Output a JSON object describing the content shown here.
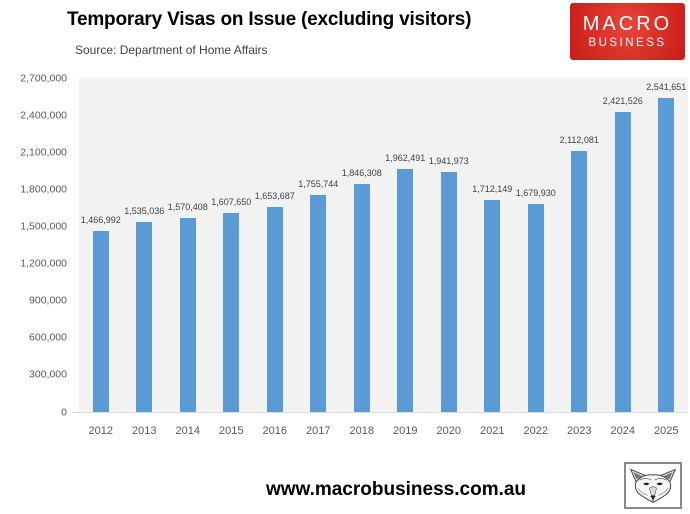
{
  "header": {
    "title": "Temporary Visas on Issue (excluding visitors)",
    "source": "Source: Department of Home Affairs",
    "logo": {
      "line1": "MACRO",
      "line2": "BUSINESS"
    }
  },
  "chart_data": {
    "type": "bar",
    "title": "Temporary Visas on Issue (excluding visitors)",
    "subtitle": "Source: Department of Home Affairs",
    "categories": [
      "2012",
      "2013",
      "2014",
      "2015",
      "2016",
      "2017",
      "2018",
      "2019",
      "2020",
      "2021",
      "2022",
      "2023",
      "2024",
      "2025"
    ],
    "values": [
      1466992,
      1535036,
      1570408,
      1607650,
      1653687,
      1755744,
      1846308,
      1962491,
      1941973,
      1712149,
      1679930,
      2112081,
      2421526,
      2541651
    ],
    "xlabel": "",
    "ylabel": "",
    "ylim": [
      0,
      2700000
    ],
    "yticks": [
      0,
      300000,
      600000,
      900000,
      1200000,
      1500000,
      1800000,
      2100000,
      2400000,
      2700000
    ],
    "grid": false,
    "legend": false,
    "data_labels": true
  },
  "footer": {
    "website": "www.macrobusiness.com.au",
    "logo_icon": "fox-head-icon"
  },
  "colors": {
    "bar-color": "#5B9BD5",
    "plot-bg": "#F2F2F2",
    "axis-line": "#D9D9D9",
    "tick-text": "#595959",
    "label-text": "#404040",
    "logo-red": "#CB1F1B",
    "logo-red-light": "#E8453A"
  }
}
